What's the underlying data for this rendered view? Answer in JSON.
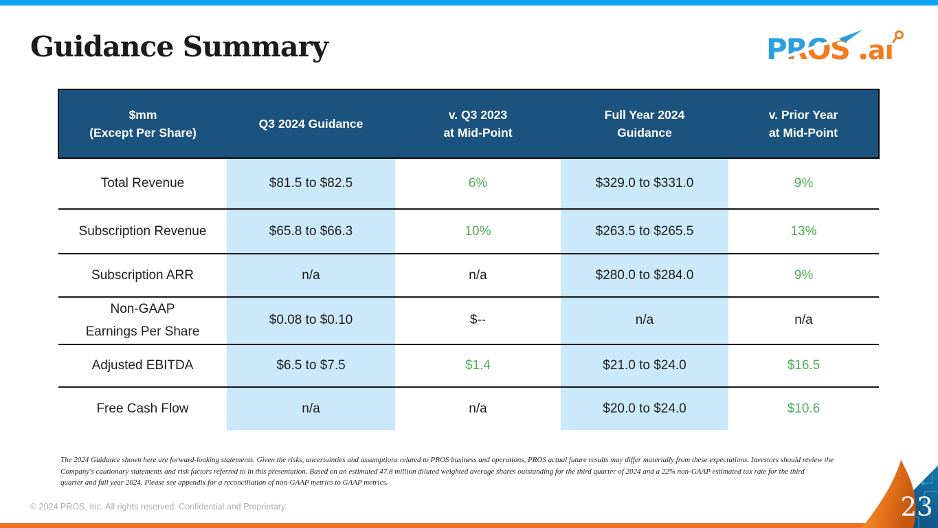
{
  "slide": {
    "title": "Guidance Summary",
    "page_number": "23",
    "copyright": "© 2024 PROS, Inc. All rights reserved. Confidential and Proprietary.",
    "footnote_lines": [
      "The 2024 Guidance shown here are forward-looking statements. Given the risks, uncertainties and assumptions related to PROS business and operations, PROS actual future results may differ materially from these expectations.  Investors should review the",
      "Company's cautionary statements and risk factors referred to in this presentation. Based on an estimated 47.8 million diluted weighted average shares outstanding for the third quarter of 2024 and a 22% non-GAAP estimated tax rate for the third",
      "quarter and full year 2024.  Please see appendix for a reconciliation of non-GAAP metrics to GAAP metrics."
    ]
  },
  "logo": {
    "word": "PROS",
    "suffix": "aı",
    "blue": "#2D9FE0",
    "orange": "#F47B20"
  },
  "colors": {
    "top_accent": "#0BA7F0",
    "bottom_accent": "#ED7223",
    "header_navy": "#1B537E",
    "highlight_blue": "#CBE9FA",
    "positive_green": "#4CAE52"
  },
  "table": {
    "columns": [
      {
        "line1": "$mm",
        "line2": "(Except Per Share)"
      },
      {
        "line1": "Q3 2024 Guidance",
        "line2": ""
      },
      {
        "line1": "v. Q3 2023",
        "line2": "at Mid-Point"
      },
      {
        "line1": "Full Year 2024",
        "line2": "Guidance"
      },
      {
        "line1": "v. Prior Year",
        "line2": "at Mid-Point"
      }
    ],
    "rows": [
      {
        "metric": [
          "Total Revenue"
        ],
        "values": [
          {
            "text": "$81.5 to $82.5",
            "highlight": true,
            "green": false
          },
          {
            "text": "6%",
            "highlight": false,
            "green": true
          },
          {
            "text": "$329.0 to $331.0",
            "highlight": true,
            "green": false
          },
          {
            "text": "9%",
            "highlight": false,
            "green": true
          }
        ]
      },
      {
        "metric": [
          "Subscription Revenue"
        ],
        "values": [
          {
            "text": "$65.8 to $66.3",
            "highlight": true,
            "green": false
          },
          {
            "text": "10%",
            "highlight": false,
            "green": true
          },
          {
            "text": "$263.5 to $265.5",
            "highlight": true,
            "green": false
          },
          {
            "text": "13%",
            "highlight": false,
            "green": true
          }
        ]
      },
      {
        "metric": [
          "Subscription ARR"
        ],
        "values": [
          {
            "text": "n/a",
            "highlight": true,
            "green": false
          },
          {
            "text": "n/a",
            "highlight": false,
            "green": false
          },
          {
            "text": "$280.0 to $284.0",
            "highlight": true,
            "green": false
          },
          {
            "text": "9%",
            "highlight": false,
            "green": true
          }
        ]
      },
      {
        "metric": [
          "Non-GAAP",
          "Earnings Per Share"
        ],
        "values": [
          {
            "text": "$0.08 to $0.10",
            "highlight": true,
            "green": false
          },
          {
            "text": "$--",
            "highlight": false,
            "green": false
          },
          {
            "text": "n/a",
            "highlight": true,
            "green": false
          },
          {
            "text": "n/a",
            "highlight": false,
            "green": false
          }
        ]
      },
      {
        "metric": [
          "Adjusted EBITDA"
        ],
        "values": [
          {
            "text": "$6.5 to $7.5",
            "highlight": true,
            "green": false
          },
          {
            "text": "$1.4",
            "highlight": false,
            "green": true
          },
          {
            "text": "$21.0 to $24.0",
            "highlight": true,
            "green": false
          },
          {
            "text": "$16.5",
            "highlight": false,
            "green": true
          }
        ]
      },
      {
        "metric": [
          "Free Cash Flow"
        ],
        "values": [
          {
            "text": "n/a",
            "highlight": true,
            "green": false
          },
          {
            "text": "n/a",
            "highlight": false,
            "green": false
          },
          {
            "text": "$20.0 to $24.0",
            "highlight": true,
            "green": false
          },
          {
            "text": "$10.6",
            "highlight": false,
            "green": true
          }
        ]
      }
    ]
  }
}
